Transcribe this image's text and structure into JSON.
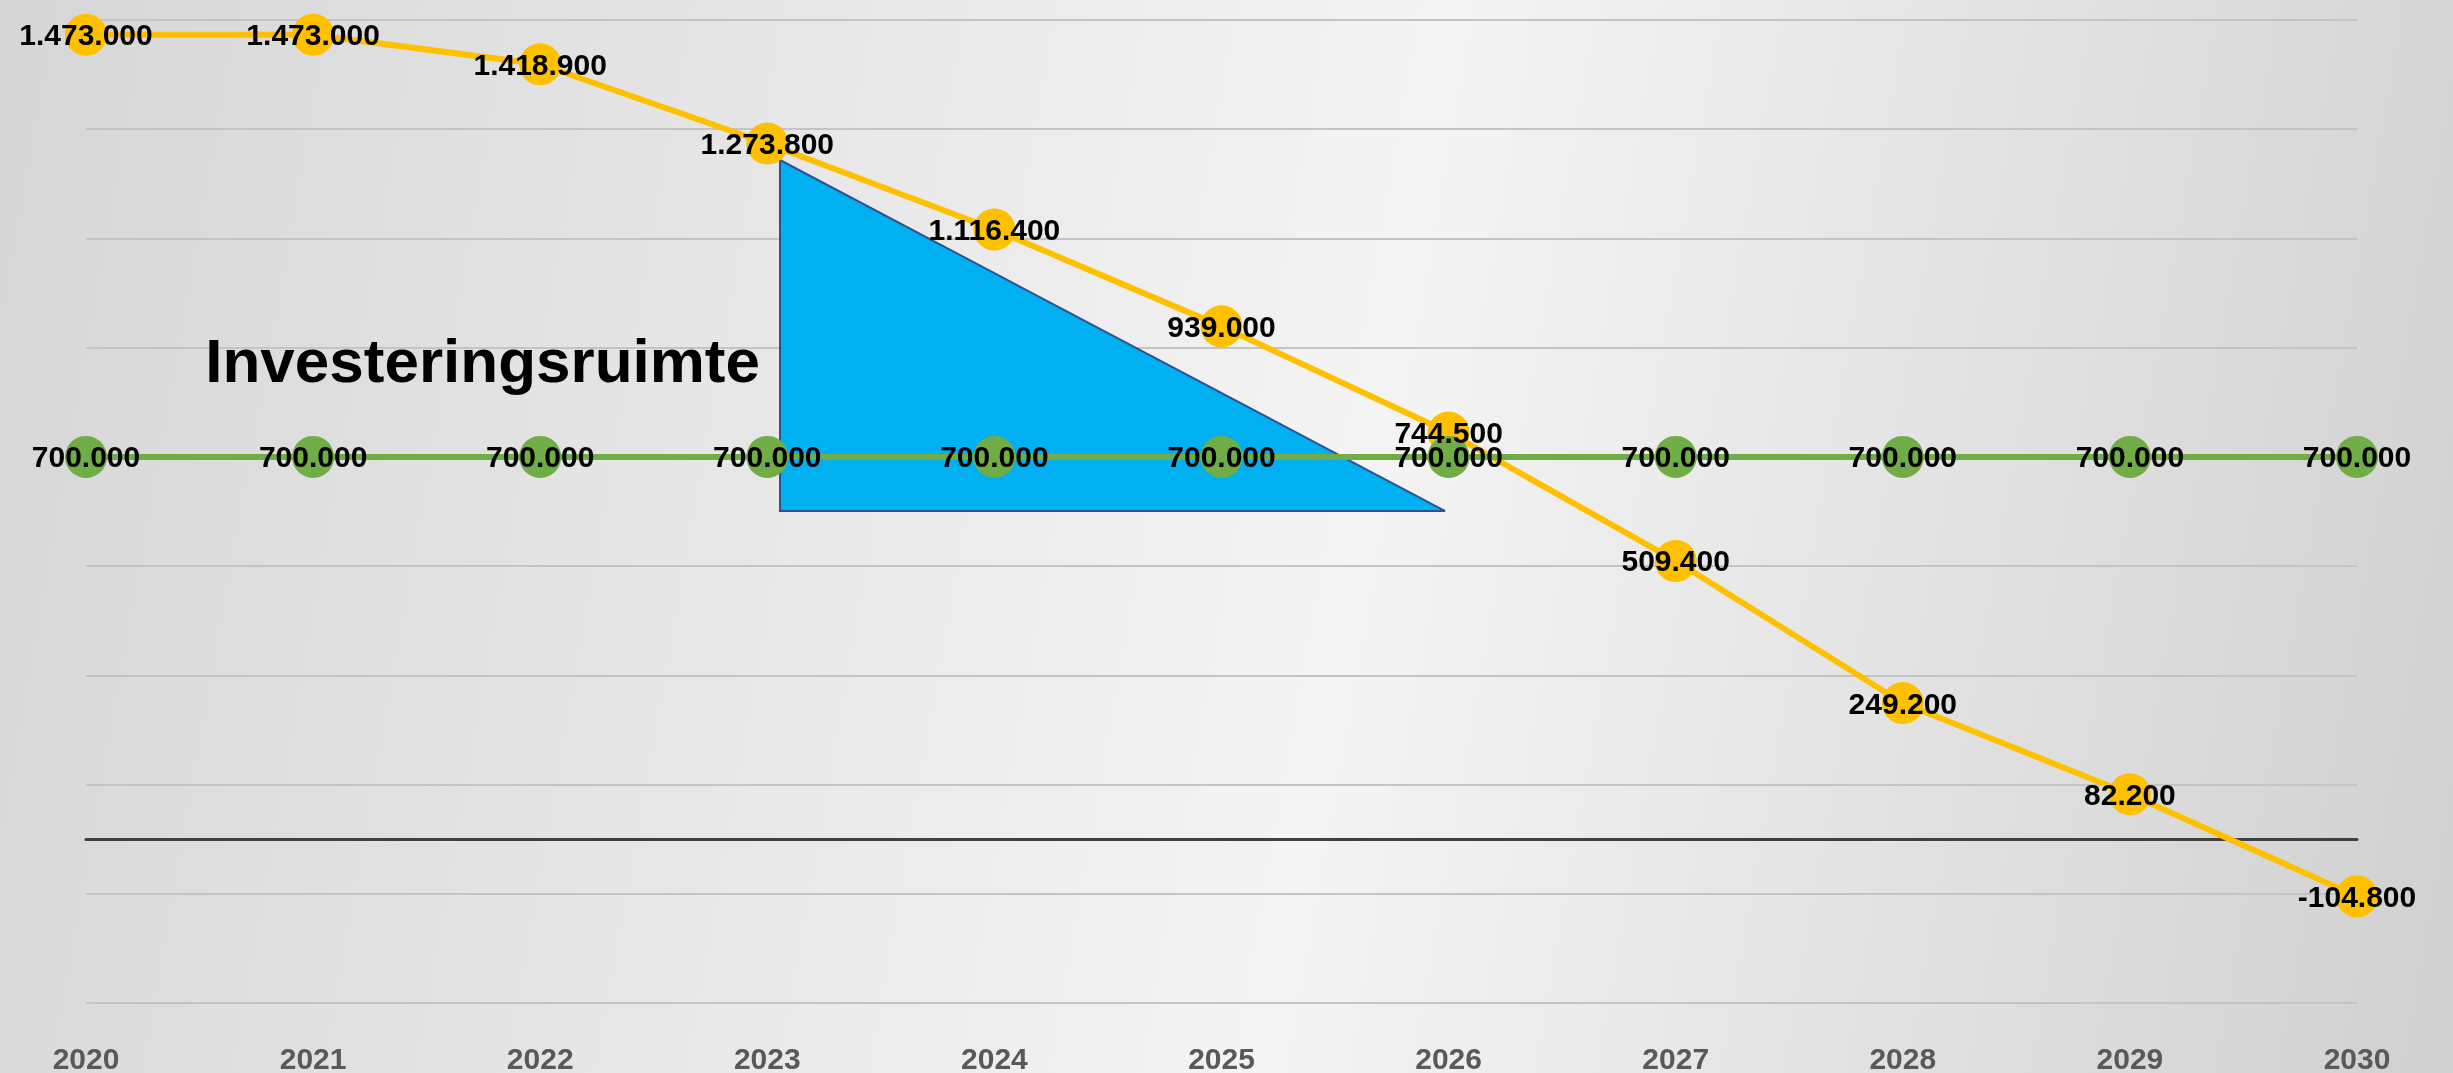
{
  "chart_data": {
    "type": "line",
    "categories": [
      "2020",
      "2021",
      "2022",
      "2023",
      "2024",
      "2025",
      "2026",
      "2027",
      "2028",
      "2029",
      "2030"
    ],
    "series": [
      {
        "color": "#ffc000",
        "values": [
          1473000,
          1473000,
          1418900,
          1273800,
          1116400,
          939000,
          744500,
          509400,
          249200,
          82200,
          -104800
        ],
        "value_labels": [
          "1.473.000",
          "1.473.000",
          "1.418.900",
          "1.273.800",
          "1.116.400",
          "939.000",
          "744.500",
          "509.400",
          "249.200",
          "82.200",
          "-104.800"
        ]
      },
      {
        "color": "#70ad47",
        "values": [
          700000,
          700000,
          700000,
          700000,
          700000,
          700000,
          700000,
          700000,
          700000,
          700000,
          700000
        ],
        "value_labels": [
          "700.000",
          "700.000",
          "700.000",
          "700.000",
          "700.000",
          "700.000",
          "700.000",
          "700.000",
          "700.000",
          "700.000",
          "700.000"
        ]
      }
    ],
    "tick_labels": "x",
    "grid": "y",
    "marker": "circle",
    "line_style": "solid",
    "annotations": [
      "Investeringsruimte"
    ]
  }
}
